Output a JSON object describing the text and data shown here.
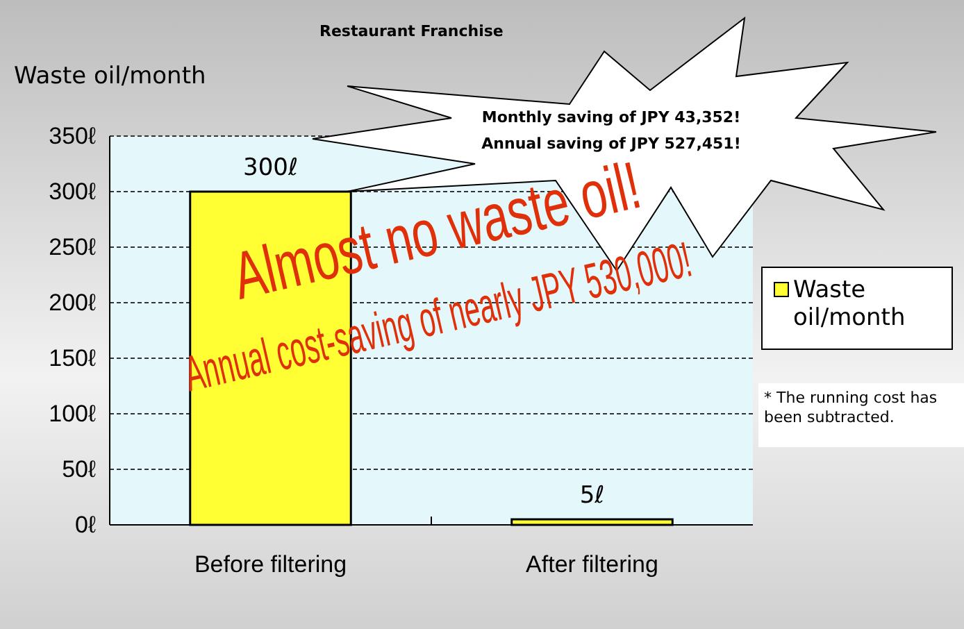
{
  "chart_data": {
    "type": "bar",
    "title": "Restaurant Franchise",
    "ylabel": "Waste oil/month",
    "categories": [
      "Before filtering",
      "After filtering"
    ],
    "series": [
      {
        "name": "Waste oil/month",
        "color": "#ffff33",
        "values": [
          300,
          5
        ],
        "value_labels": [
          "300ℓ",
          "5ℓ"
        ]
      }
    ],
    "ylim": [
      0,
      350
    ],
    "yticks": [
      {
        "value": 0,
        "label": "0ℓ"
      },
      {
        "value": 50,
        "label": "50ℓ"
      },
      {
        "value": 100,
        "label": "100ℓ"
      },
      {
        "value": 150,
        "label": "150ℓ"
      },
      {
        "value": 200,
        "label": "200ℓ"
      },
      {
        "value": 250,
        "label": "250ℓ"
      },
      {
        "value": 300,
        "label": "300ℓ"
      },
      {
        "value": 350,
        "label": "350ℓ"
      }
    ],
    "grid": "y",
    "legend": "right",
    "annotations": [
      "Monthly saving of JPY 43,352!",
      "Annual saving of JPY 527,451!",
      "Almost no waste oil!",
      "Annual cost-saving of nearly JPY 530,000!",
      "* The running cost has been subtracted."
    ]
  }
}
